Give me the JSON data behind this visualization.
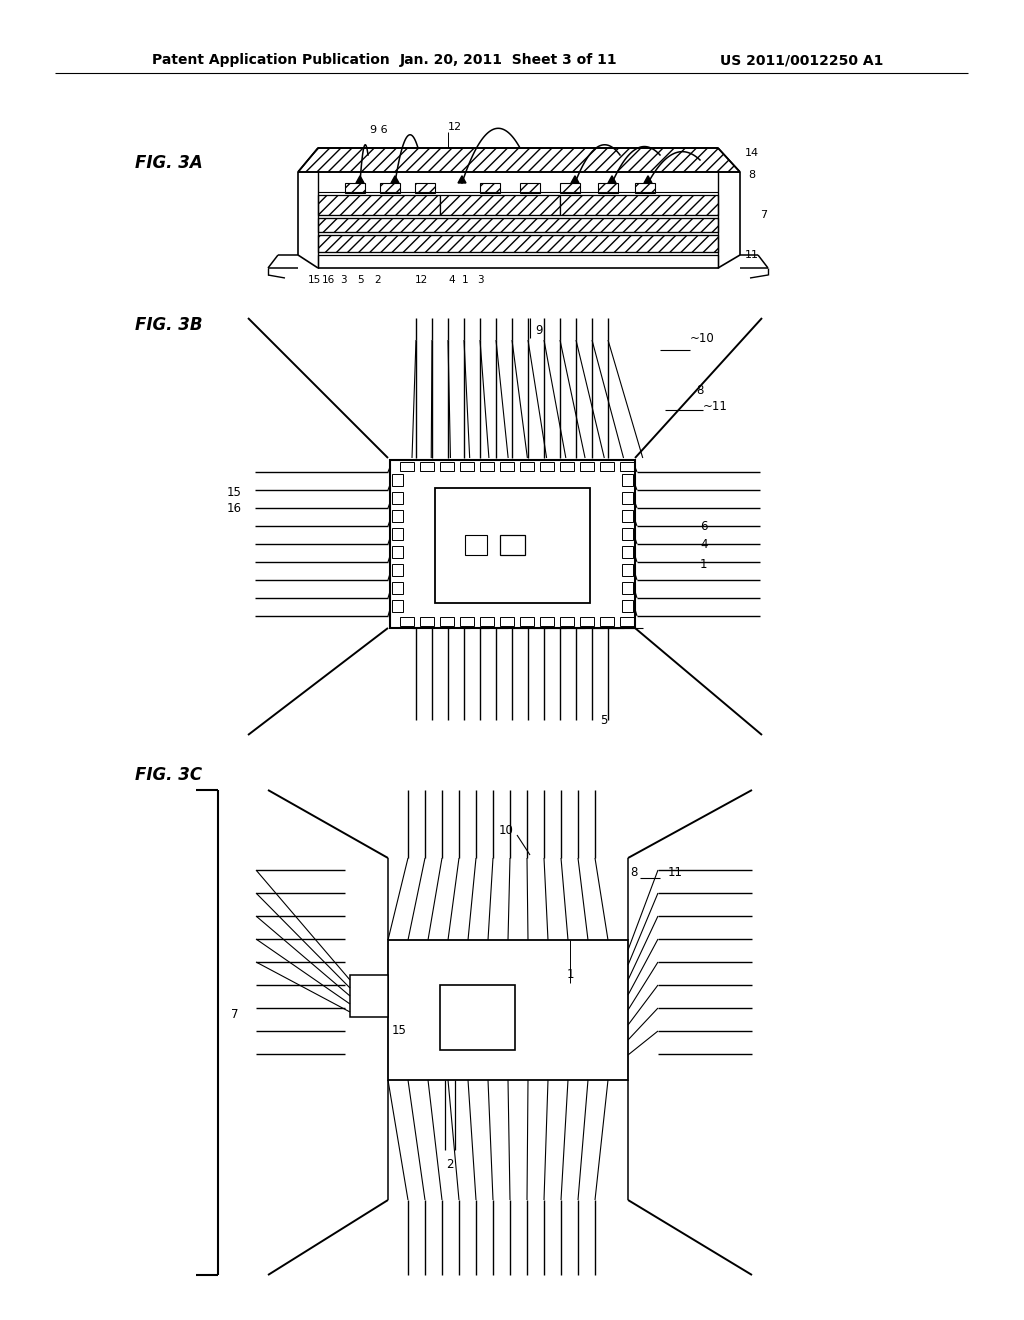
{
  "bg": "#ffffff",
  "hdr_l": "Patent Application Publication",
  "hdr_m": "Jan. 20, 2011  Sheet 3 of 11",
  "hdr_r": "US 2011/0012250 A1",
  "f3a": "FIG. 3A",
  "f3b": "FIG. 3B",
  "f3c": "FIG. 3C"
}
